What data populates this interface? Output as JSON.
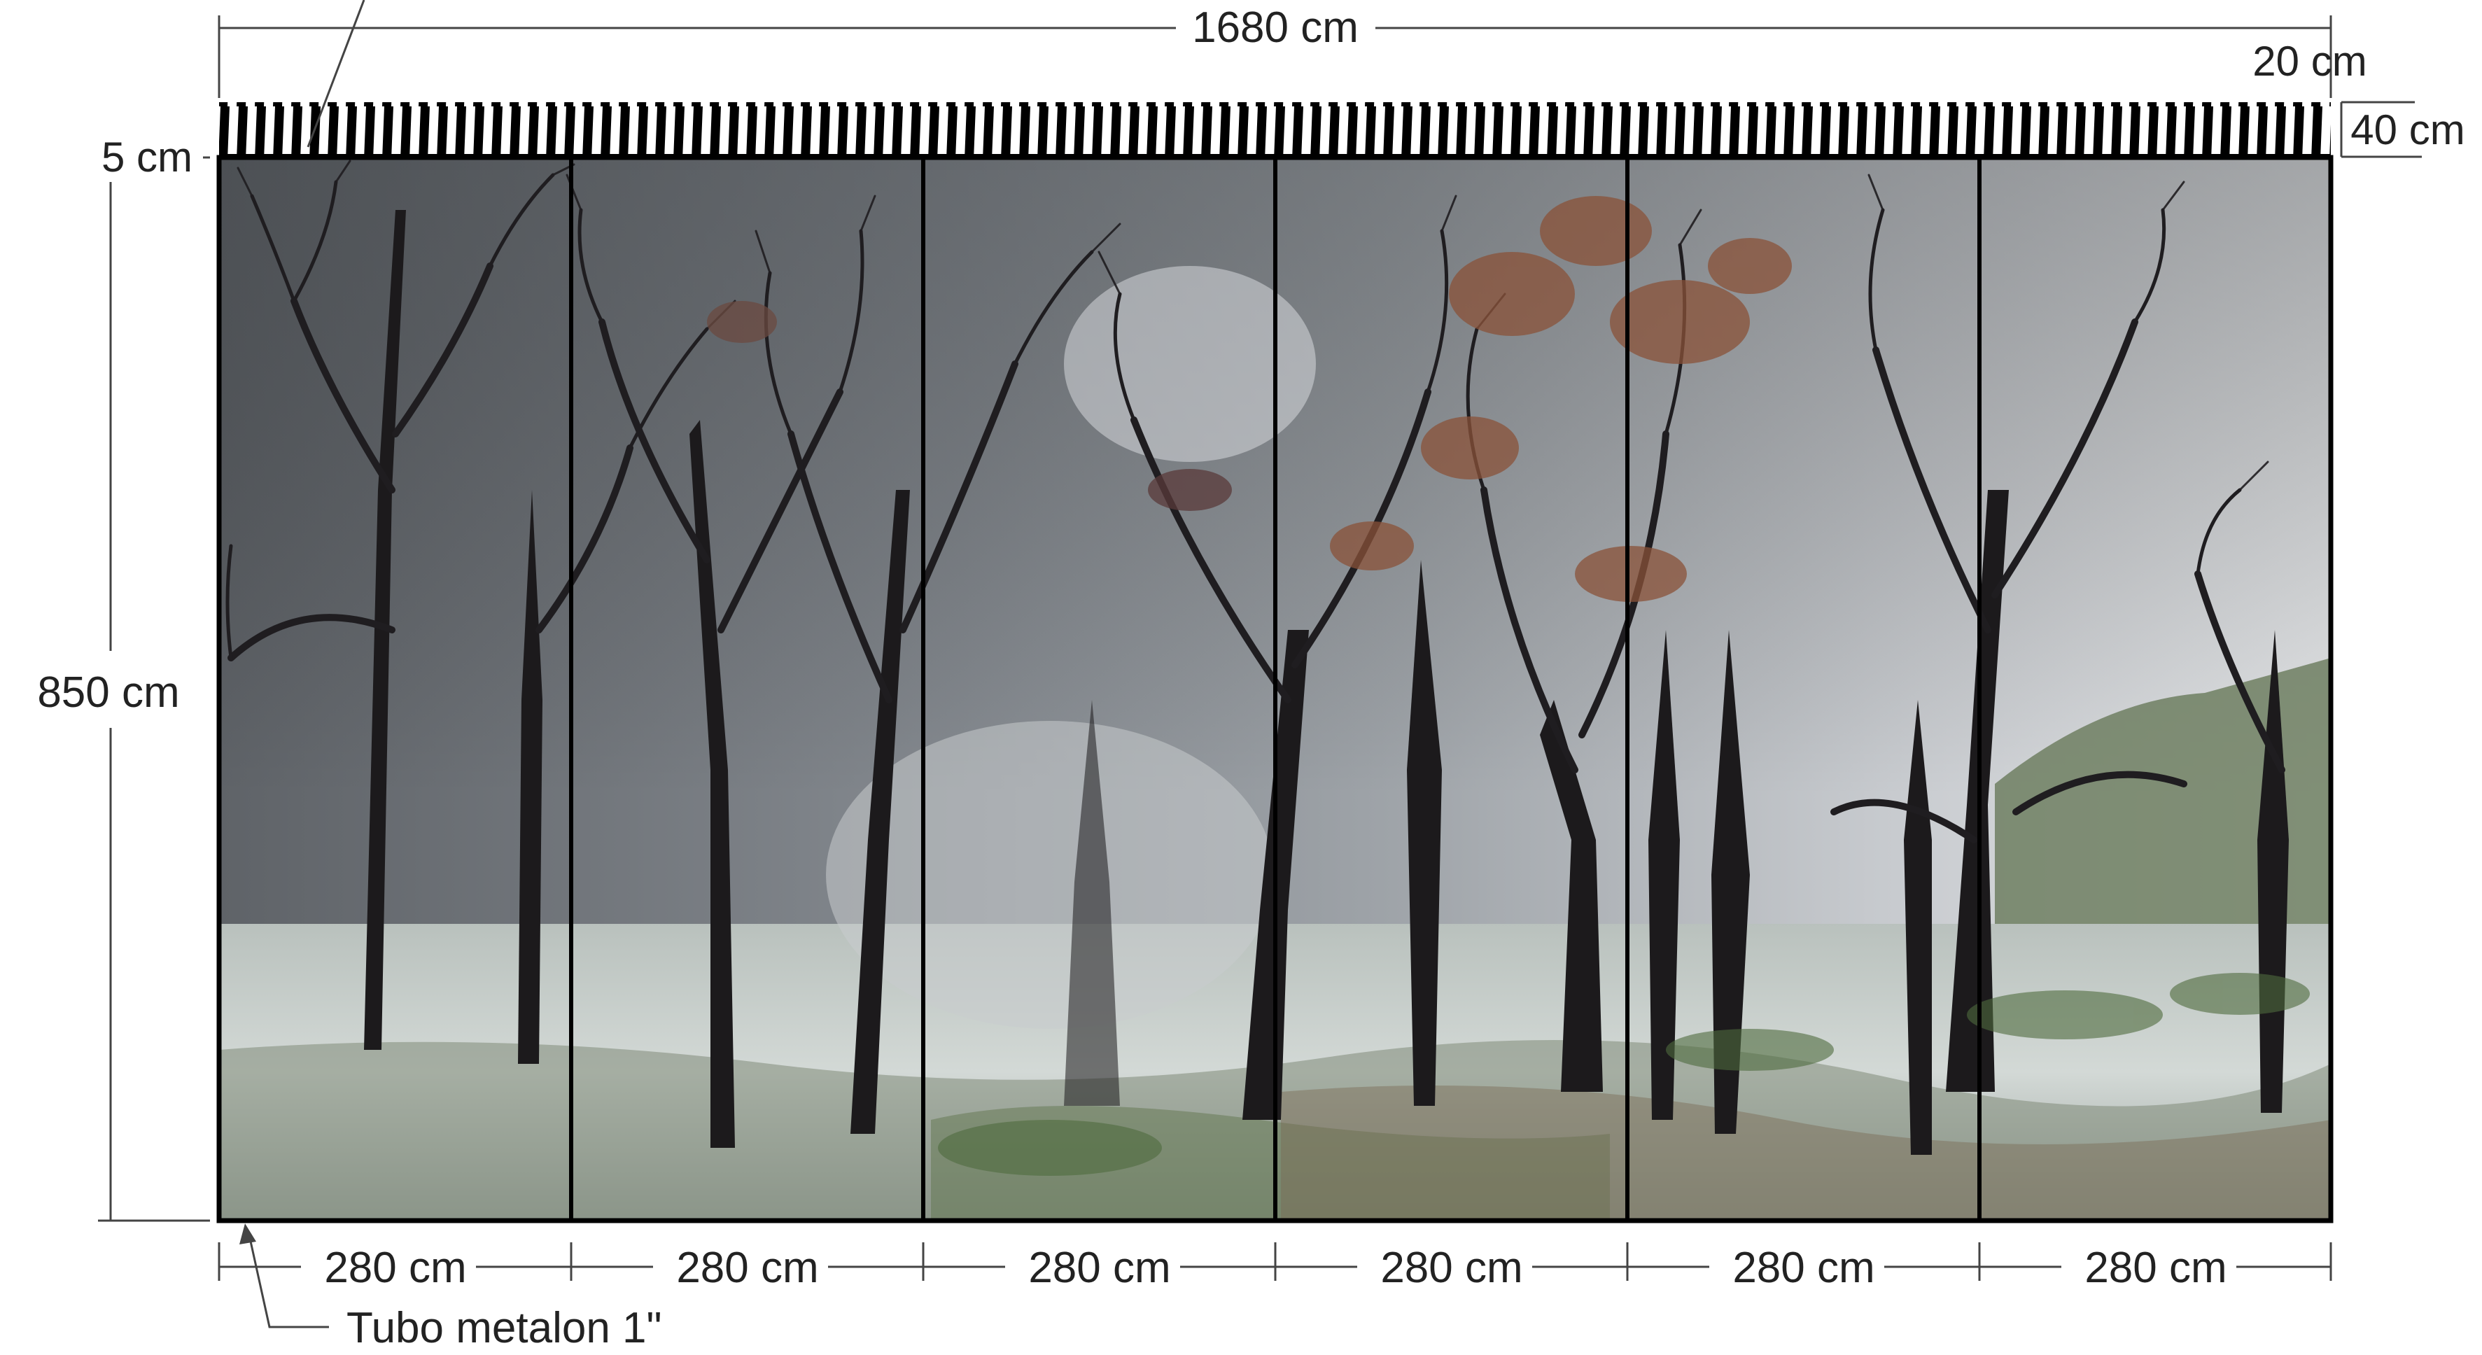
{
  "dimensions": {
    "total_width": "1680 cm",
    "total_height": "850 cm",
    "top_gap": "5 cm",
    "header_small": "20 cm",
    "header_large": "40 cm",
    "panel_widths": [
      "280 cm",
      "280 cm",
      "280 cm",
      "280 cm",
      "280 cm",
      "280 cm"
    ]
  },
  "labels": {
    "tube": "Tubo metalon 1\""
  },
  "colors": {
    "line": "#000000",
    "dim_line": "#444444",
    "text": "#222222",
    "sky_top": "#6b6e72",
    "sky_mid": "#a7abb0",
    "sky_bright": "#e2e4e6",
    "ground": "#cfd6d3",
    "tree_dark": "#1c1a1c",
    "foliage_rust": "#8a5238",
    "grass_green": "#4f6b3d"
  }
}
